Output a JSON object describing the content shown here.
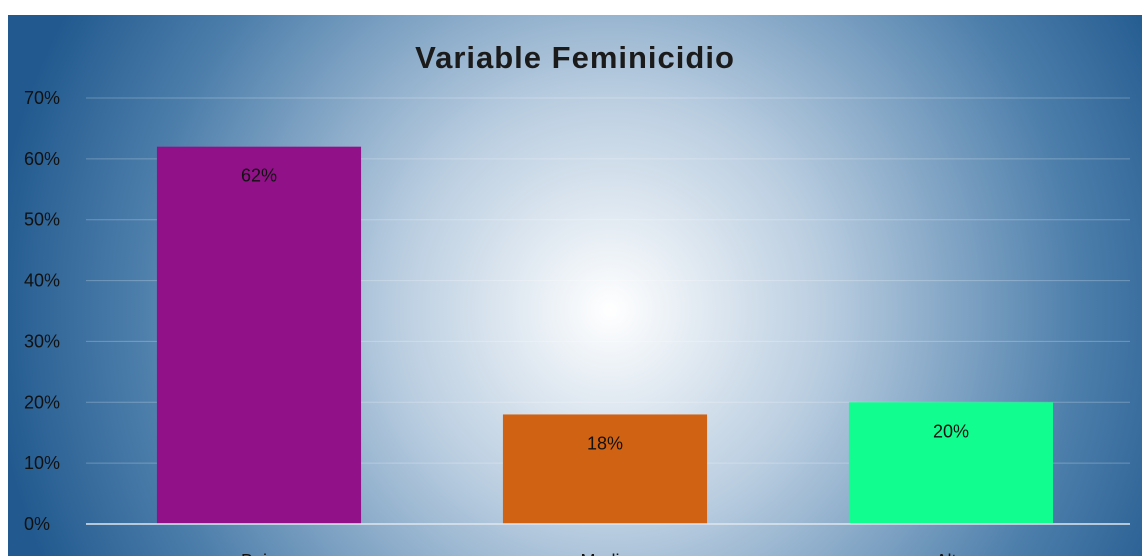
{
  "chart_data": {
    "type": "bar",
    "title": "Variable Feminicidio",
    "categories": [
      "Bajo",
      "Medio",
      "Alto"
    ],
    "values": [
      62,
      18,
      20
    ],
    "value_labels": [
      "62%",
      "18%",
      "20%"
    ],
    "colors": [
      "#911189",
      "#d06214",
      "#12fd90"
    ],
    "ylim": [
      0,
      70
    ],
    "yticks": [
      {
        "value": 0,
        "label": "0%"
      },
      {
        "value": 10,
        "label": "10%"
      },
      {
        "value": 20,
        "label": "20%"
      },
      {
        "value": 30,
        "label": "30%"
      },
      {
        "value": 40,
        "label": "40%"
      },
      {
        "value": 50,
        "label": "50%"
      },
      {
        "value": 60,
        "label": "60%"
      },
      {
        "value": 70,
        "label": "70%"
      }
    ],
    "grid": true
  }
}
